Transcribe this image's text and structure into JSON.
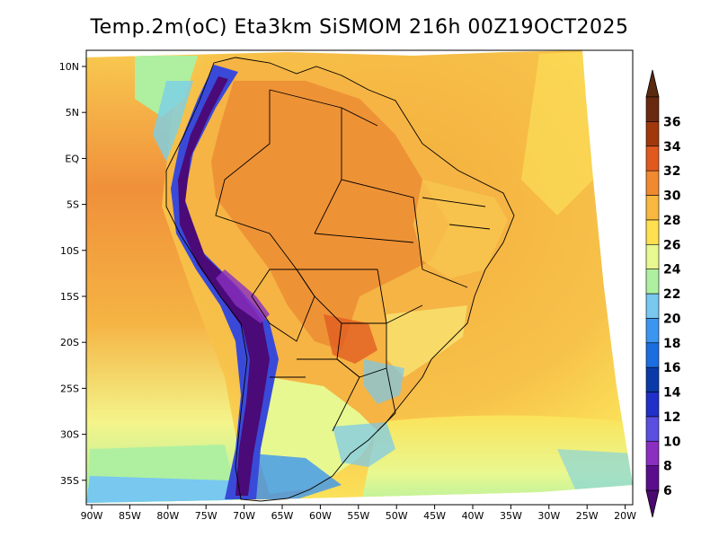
{
  "title": "Temp.2m(oC) Eta3km SiSMOM 216h 00Z19OCT2025",
  "lat_ticks": [
    "10N",
    "5N",
    "EQ",
    "5S",
    "10S",
    "15S",
    "20S",
    "25S",
    "30S",
    "35S"
  ],
  "lon_ticks": [
    "90W",
    "85W",
    "80W",
    "75W",
    "70W",
    "65W",
    "60W",
    "55W",
    "50W",
    "45W",
    "40W",
    "35W",
    "30W",
    "25W",
    "20W"
  ],
  "colorbar": {
    "labels": [
      "6",
      "8",
      "10",
      "12",
      "14",
      "16",
      "18",
      "20",
      "22",
      "24",
      "26",
      "28",
      "30",
      "32",
      "34",
      "36"
    ],
    "colors": [
      "#5a0e8c",
      "#8a2fc0",
      "#5a4fe0",
      "#2030c8",
      "#0a3aa8",
      "#1a6ee0",
      "#3c96f0",
      "#78c8f0",
      "#aef0a0",
      "#e8f890",
      "#ffe050",
      "#f8b840",
      "#f08a30",
      "#e05a20",
      "#a0380c",
      "#6a2a10"
    ],
    "under_color": "#4a0870",
    "over_color": "#5a2a10"
  },
  "map_colors": {
    "ocean_warm": "#f4ad3c",
    "ocean_hot": "#f0883a",
    "ocean_mild": "#fbe35a",
    "ocean_cool": "#f4f48a",
    "ocean_cold": "#c8f09a",
    "coast_cold": "#7ad0e8",
    "andes_high": "#4a0a78",
    "andes_mid": "#3a4ad8",
    "land_hot": "#ec8c34",
    "land_warm": "#f5b444",
    "land_mild": "#f8e070"
  }
}
